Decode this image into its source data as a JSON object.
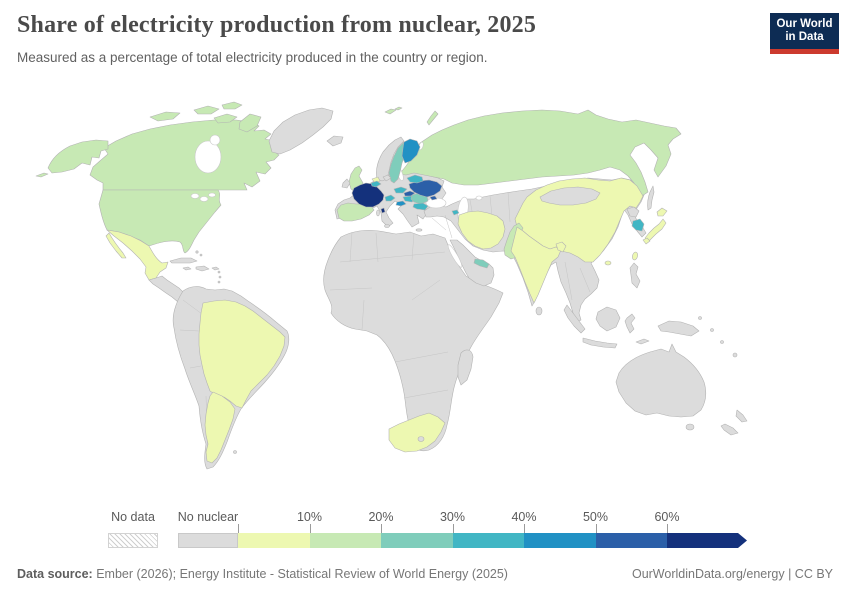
{
  "header": {
    "title": "Share of electricity production from nuclear, 2025",
    "subtitle": "Measured as a percentage of total electricity produced in the country or region.",
    "logo_line1": "Our World",
    "logo_line2": "in Data",
    "logo_bg": "#0d2c54",
    "logo_red": "#cc3a2e"
  },
  "legend": {
    "no_data_label": "No data",
    "no_nuclear_label": "No nuclear",
    "tick_labels": [
      "10%",
      "20%",
      "30%",
      "40%",
      "50%",
      "60%"
    ],
    "bucket_colors": [
      "#edf8b1",
      "#c7e9b4",
      "#7fcdbb",
      "#41b6c4",
      "#2191c4",
      "#2b5fa8",
      "#14317c"
    ]
  },
  "footer": {
    "source_label": "Data source:",
    "source_text": " Ember (2026); Energy Institute - Statistical Review of World Energy (2025)",
    "right_link": "OurWorldinData.org/energy",
    "separator": " | ",
    "license": "CC BY"
  },
  "chart_data": {
    "type": "choropleth",
    "title": "Share of electricity production from nuclear, 2025",
    "unit": "%",
    "year": "2025",
    "legend_thresholds": [
      "10%",
      "20%",
      "30%",
      "40%",
      "50%",
      "60%"
    ],
    "special_categories": [
      "No data",
      "No nuclear"
    ],
    "buckets": {
      "60_plus": [
        "France"
      ],
      "50_60": [
        "Ukraine",
        "Slovakia"
      ],
      "40_50": [
        "Finland",
        "Slovenia"
      ],
      "30_40": [
        "Belgium",
        "Switzerland",
        "Czechia",
        "Hungary",
        "Bulgaria",
        "Belarus",
        "South Korea",
        "Armenia"
      ],
      "20_30": [
        "Sweden",
        "Romania",
        "United Arab Emirates"
      ],
      "10_20": [
        "United States",
        "Canada",
        "Russia",
        "United Kingdom",
        "Spain",
        "Pakistan"
      ],
      "0_10": [
        "Mexico",
        "Brazil",
        "Argentina",
        "Netherlands",
        "China",
        "India",
        "Bangladesh",
        "Iran",
        "Japan",
        "Taiwan",
        "South Africa"
      ],
      "no_nuclear": [
        "All other countries shown in gray"
      ]
    }
  },
  "map": {
    "ocean": "#ffffff",
    "palette": {
      "no_nuclear": "#dcdcdc",
      "b0": "#edf8b1",
      "b10": "#c7e9b4",
      "b20": "#7fcdbb",
      "b30": "#41b6c4",
      "b40": "#2191c4",
      "b50": "#2b5fa8",
      "b60": "#14317c",
      "water": "#ffffff"
    },
    "regions": {
      "alaska": "b10",
      "canada": "b10",
      "canada-arctic": "b10",
      "greenland": "no_nuclear",
      "usa": "b10",
      "mexico": "b0",
      "baja": "b0",
      "central-america": "no_nuclear",
      "cuba": "no_nuclear",
      "hispaniola": "no_nuclear",
      "jamaica": "no_nuclear",
      "puerto-rico": "no_nuclear",
      "antilles": "no_nuclear",
      "bahamas": "no_nuclear",
      "falklands": "no_nuclear",
      "south-america": "no_nuclear",
      "brazil": "b0",
      "argentina": "b0",
      "africa": "no_nuclear",
      "madagascar": "no_nuclear",
      "south-africa": "b0",
      "lesotho": "no_nuclear",
      "europe": "no_nuclear",
      "iceland": "no_nuclear",
      "norway": "no_nuclear",
      "denmark": "no_nuclear",
      "sweden": "b20",
      "finland": "b40",
      "uk": "b10",
      "ireland": "no_nuclear",
      "spain": "b10",
      "france": "b60",
      "corsica": "b60",
      "netherlands": "b0",
      "belgium": "b30",
      "switzerland": "b30",
      "czechia": "b30",
      "slovakia": "b50",
      "hungary": "b30",
      "slovenia": "b40",
      "romania": "b20",
      "bulgaria": "b30",
      "ukraine": "b50",
      "crimea": "b50",
      "belarus": "b30",
      "armenia": "b30",
      "sicily": "no_nuclear",
      "sardinia": "no_nuclear",
      "crete": "no_nuclear",
      "russia": "b10",
      "novaya-zemlya": "b10",
      "svalbard": "b10",
      "sakhalin": "no_nuclear",
      "asia": "no_nuclear",
      "arabia": "no_nuclear",
      "uae": "b20",
      "iran": "b0",
      "pakistan": "b10",
      "india": "b0",
      "bangladesh": "b0",
      "sri-lanka": "no_nuclear",
      "china": "b0",
      "hainan": "b0",
      "taiwan": "b0",
      "mongolia": "no_nuclear",
      "north-korea": "no_nuclear",
      "south-korea": "b30",
      "japan": "b0",
      "indonesia": "no_nuclear",
      "philippines": "no_nuclear",
      "new-guinea": "no_nuclear",
      "australia": "no_nuclear",
      "tasmania": "no_nuclear",
      "new-zealand": "no_nuclear",
      "pacific-islands": "no_nuclear",
      "water": "water"
    }
  }
}
